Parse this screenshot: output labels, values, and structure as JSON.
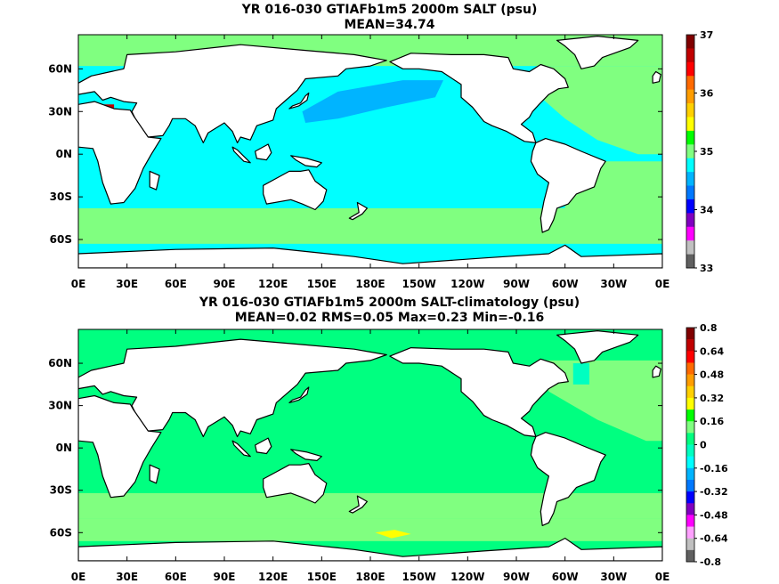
{
  "chart_data": [
    {
      "type": "heatmap",
      "title": "YR 016-030 GTIAFb1m5 2000m SALT (psu)",
      "subtitle": "MEAN=34.74",
      "x_ticks": [
        "0E",
        "30E",
        "60E",
        "90E",
        "120E",
        "150E",
        "180E",
        "150W",
        "120W",
        "90W",
        "60W",
        "30W",
        "0E"
      ],
      "y_ticks": [
        "60N",
        "30N",
        "0N",
        "30S",
        "60S"
      ],
      "colorbar": {
        "labels": [
          "37",
          "36",
          "35",
          "34",
          "33"
        ],
        "levels": [
          37,
          36.75,
          36.5,
          36.25,
          36,
          35.75,
          35.5,
          35.25,
          35,
          34.75,
          34.5,
          34.25,
          34,
          33.75,
          33.5,
          33.25,
          33
        ],
        "colors": [
          "#800000",
          "#c00000",
          "#ff0000",
          "#ff6a00",
          "#ff9d00",
          "#ffd000",
          "#ffff00",
          "#00ff00",
          "#80ff80",
          "#00ffff",
          "#00b4ff",
          "#0078ff",
          "#0000ff",
          "#8000c0",
          "#ff00ff",
          "#c0c0c0",
          "#606060"
        ]
      },
      "regions": [
        {
          "name": "arctic",
          "value": 35.1,
          "color": "#80ff80"
        },
        {
          "name": "north-pacific",
          "value": 34.6,
          "color": "#00b4ff"
        },
        {
          "name": "pacific-indian",
          "value": 34.7,
          "color": "#00ffff"
        },
        {
          "name": "north-atlantic",
          "value": 35.0,
          "color": "#80ff80"
        },
        {
          "name": "south-atlantic",
          "value": 34.9,
          "color": "#80ff80"
        },
        {
          "name": "southern-ocean",
          "value": 34.85,
          "color": "#80ff80"
        },
        {
          "name": "mediterranean",
          "value": 36.5,
          "color": "#c00000"
        }
      ]
    },
    {
      "type": "heatmap",
      "title": "YR 016-030 GTIAFb1m5 2000m SALT-climatology (psu)",
      "subtitle": "MEAN=0.02   RMS=0.05   Max=0.23   Min=-0.16",
      "x_ticks": [
        "0E",
        "30E",
        "60E",
        "90E",
        "120E",
        "150E",
        "180E",
        "150W",
        "120W",
        "90W",
        "60W",
        "30W",
        "0E"
      ],
      "y_ticks": [
        "60N",
        "30N",
        "0N",
        "30S",
        "60S"
      ],
      "colorbar": {
        "labels": [
          "0.8",
          "0.64",
          "0.48",
          "0.32",
          "0.16",
          "0",
          "-0.16",
          "-0.32",
          "-0.48",
          "-0.64",
          "-0.8"
        ],
        "levels": [
          0.8,
          0.72,
          0.64,
          0.56,
          0.48,
          0.4,
          0.32,
          0.24,
          0.16,
          0.08,
          0,
          -0.08,
          -0.16,
          -0.24,
          -0.32,
          -0.4,
          -0.48,
          -0.56,
          -0.64,
          -0.72,
          -0.8
        ],
        "colors": [
          "#800000",
          "#c00000",
          "#ff0000",
          "#ff6a00",
          "#ff9d00",
          "#ffd000",
          "#ffff00",
          "#00ff00",
          "#80ff80",
          "#00ff80",
          "#00ffc0",
          "#00ffff",
          "#00b4ff",
          "#0078ff",
          "#0000ff",
          "#8000c0",
          "#ff00ff",
          "#ffa0ff",
          "#c0c0c0",
          "#606060"
        ]
      },
      "regions": [
        {
          "name": "background",
          "value": 0.02,
          "color": "#00ff80"
        },
        {
          "name": "southern-band",
          "value": 0.1,
          "color": "#80ff80"
        },
        {
          "name": "atlantic",
          "value": 0.08,
          "color": "#80ff80"
        },
        {
          "name": "southern-max",
          "value": 0.23,
          "color": "#ffff00"
        },
        {
          "name": "labrador-min",
          "value": -0.05,
          "color": "#00ffc0"
        }
      ]
    }
  ]
}
